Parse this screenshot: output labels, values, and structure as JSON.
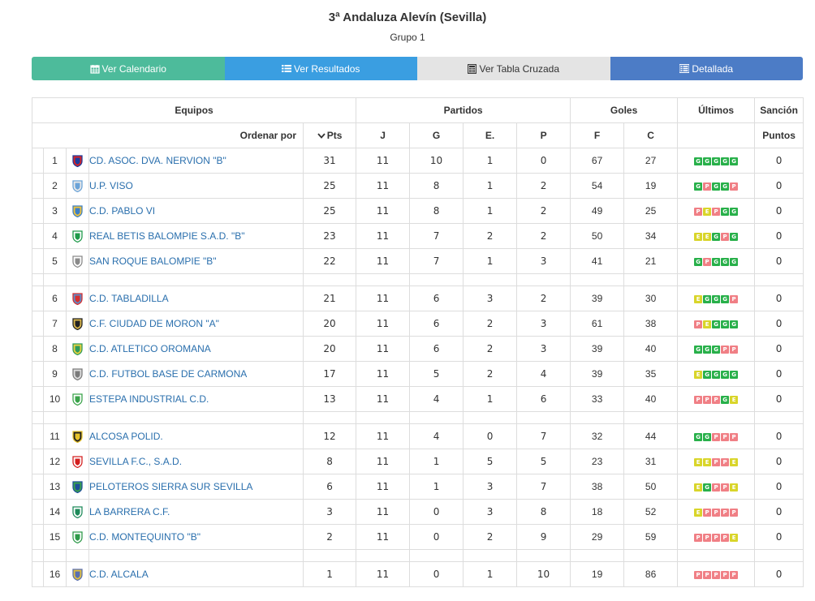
{
  "header": {
    "title": "3ª Andaluza Alevín (Sevilla)",
    "subtitle": "Grupo 1"
  },
  "tabs": [
    {
      "label": "Ver Calendario",
      "icon": "calendar-icon"
    },
    {
      "label": "Ver Resultados",
      "icon": "list-icon"
    },
    {
      "label": "Ver Tabla Cruzada",
      "icon": "calculator-icon"
    },
    {
      "label": "Detallada",
      "icon": "detail-list-icon"
    }
  ],
  "table": {
    "group_headers": {
      "equipos": "Equipos",
      "partidos": "Partidos",
      "goles": "Goles",
      "ultimos": "Últimos",
      "sancion": "Sanción"
    },
    "sub_headers": {
      "ordenar": "Ordenar por",
      "pts": "Pts",
      "j": "J",
      "g": "G",
      "e": "E.",
      "p": "P",
      "f": "F",
      "c": "C",
      "puntos": "Puntos"
    },
    "rows": [
      {
        "pos": "1",
        "team": "CD. ASOC. DVA. NERVION \"B\"",
        "pts": "31",
        "j": "11",
        "g": "10",
        "e": "1",
        "p": "0",
        "f": "67",
        "c": "27",
        "last": [
          "G",
          "G",
          "G",
          "G",
          "G"
        ],
        "sancion": "0",
        "crest": [
          "#1f3c9c",
          "#d22"
        ]
      },
      {
        "pos": "2",
        "team": "U.P. VISO",
        "pts": "25",
        "j": "11",
        "g": "8",
        "e": "1",
        "p": "2",
        "f": "54",
        "c": "19",
        "last": [
          "G",
          "P",
          "G",
          "G",
          "P"
        ],
        "sancion": "0",
        "crest": [
          "#6aa3d8",
          "#e9e9e9"
        ]
      },
      {
        "pos": "3",
        "team": "C.D. PABLO VI",
        "pts": "25",
        "j": "11",
        "g": "8",
        "e": "1",
        "p": "2",
        "f": "49",
        "c": "25",
        "last": [
          "P",
          "E",
          "P",
          "G",
          "G"
        ],
        "sancion": "0",
        "crest": [
          "#3d7fc4",
          "#f0c23a"
        ]
      },
      {
        "pos": "4",
        "team": "REAL BETIS BALOMPIE S.A.D. \"B\"",
        "pts": "23",
        "j": "11",
        "g": "7",
        "e": "2",
        "p": "2",
        "f": "50",
        "c": "34",
        "last": [
          "E",
          "E",
          "G",
          "P",
          "G"
        ],
        "sancion": "0",
        "crest": [
          "#1e9a4a",
          "#ffffff"
        ]
      },
      {
        "pos": "5",
        "team": "SAN ROQUE BALOMPIE \"B\"",
        "pts": "22",
        "j": "11",
        "g": "7",
        "e": "1",
        "p": "3",
        "f": "41",
        "c": "21",
        "last": [
          "G",
          "P",
          "G",
          "G",
          "G"
        ],
        "sancion": "0",
        "crest": [
          "#8a8a8a",
          "#ffffff"
        ]
      },
      {
        "pos": "6",
        "team": "C.D. TABLADILLA",
        "pts": "21",
        "j": "11",
        "g": "6",
        "e": "3",
        "p": "2",
        "f": "39",
        "c": "30",
        "last": [
          "E",
          "G",
          "G",
          "G",
          "P"
        ],
        "sancion": "0",
        "crest": [
          "#d63030",
          "#5c8dc8"
        ]
      },
      {
        "pos": "7",
        "team": "C.F. CIUDAD DE MORON \"A\"",
        "pts": "20",
        "j": "11",
        "g": "6",
        "e": "2",
        "p": "3",
        "f": "61",
        "c": "38",
        "last": [
          "P",
          "E",
          "G",
          "G",
          "G"
        ],
        "sancion": "0",
        "crest": [
          "#222222",
          "#d9b64a"
        ]
      },
      {
        "pos": "8",
        "team": "C.D. ATLETICO OROMANA",
        "pts": "20",
        "j": "11",
        "g": "6",
        "e": "2",
        "p": "3",
        "f": "39",
        "c": "40",
        "last": [
          "G",
          "G",
          "G",
          "P",
          "P"
        ],
        "sancion": "0",
        "crest": [
          "#2f9a5a",
          "#e8d040"
        ]
      },
      {
        "pos": "9",
        "team": "C.D. FUTBOL BASE DE CARMONA",
        "pts": "17",
        "j": "11",
        "g": "5",
        "e": "2",
        "p": "4",
        "f": "39",
        "c": "35",
        "last": [
          "E",
          "G",
          "G",
          "G",
          "G"
        ],
        "sancion": "0",
        "crest": [
          "#7a7a7a",
          "#dddddd"
        ]
      },
      {
        "pos": "10",
        "team": "ESTEPA INDUSTRIAL C.D.",
        "pts": "13",
        "j": "11",
        "g": "4",
        "e": "1",
        "p": "6",
        "f": "33",
        "c": "40",
        "last": [
          "P",
          "P",
          "P",
          "G",
          "E"
        ],
        "sancion": "0",
        "crest": [
          "#3aa34a",
          "#ffffff"
        ]
      },
      {
        "pos": "11",
        "team": "ALCOSA POLID.",
        "pts": "12",
        "j": "11",
        "g": "4",
        "e": "0",
        "p": "7",
        "f": "32",
        "c": "44",
        "last": [
          "G",
          "G",
          "P",
          "P",
          "P"
        ],
        "sancion": "0",
        "crest": [
          "#e6c22a",
          "#222222"
        ]
      },
      {
        "pos": "12",
        "team": "SEVILLA F.C., S.A.D.",
        "pts": "8",
        "j": "11",
        "g": "1",
        "e": "5",
        "p": "5",
        "f": "23",
        "c": "31",
        "last": [
          "E",
          "E",
          "P",
          "P",
          "E"
        ],
        "sancion": "0",
        "crest": [
          "#d42020",
          "#ffffff"
        ]
      },
      {
        "pos": "13",
        "team": "PELOTEROS SIERRA SUR SEVILLA",
        "pts": "6",
        "j": "11",
        "g": "1",
        "e": "3",
        "p": "7",
        "f": "38",
        "c": "50",
        "last": [
          "E",
          "G",
          "P",
          "P",
          "E"
        ],
        "sancion": "0",
        "crest": [
          "#1f4f9a",
          "#3aa34a"
        ]
      },
      {
        "pos": "14",
        "team": "LA BARRERA C.F.",
        "pts": "3",
        "j": "11",
        "g": "0",
        "e": "3",
        "p": "8",
        "f": "18",
        "c": "52",
        "last": [
          "E",
          "P",
          "P",
          "P",
          "P"
        ],
        "sancion": "0",
        "crest": [
          "#1e8a5a",
          "#ffffff"
        ]
      },
      {
        "pos": "15",
        "team": "C.D. MONTEQUINTO \"B\"",
        "pts": "2",
        "j": "11",
        "g": "0",
        "e": "2",
        "p": "9",
        "f": "29",
        "c": "59",
        "last": [
          "P",
          "P",
          "P",
          "P",
          "E"
        ],
        "sancion": "0",
        "crest": [
          "#2f9a4a",
          "#ffffff"
        ]
      },
      {
        "pos": "16",
        "team": "C.D. ALCALA",
        "pts": "1",
        "j": "11",
        "g": "0",
        "e": "1",
        "p": "10",
        "f": "19",
        "c": "86",
        "last": [
          "P",
          "P",
          "P",
          "P",
          "P"
        ],
        "sancion": "0",
        "crest": [
          "#5a6fb0",
          "#e0c040"
        ]
      }
    ],
    "separators_after": [
      5,
      10,
      15
    ]
  }
}
